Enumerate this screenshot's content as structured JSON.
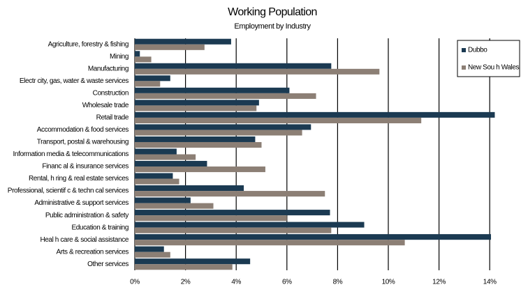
{
  "chart_data": {
    "type": "barh",
    "title": "Working Population",
    "subtitle": "Employment by Industry",
    "categories": [
      "Agriculture, forestry & fishing",
      "Mining",
      "Manufacturing",
      "Electr city, gas, water & waste services",
      "Construction",
      "Wholesale trade",
      "Retail trade",
      "Accommodation & food services",
      "Transport, postal & warehousing",
      "Information media & telecommunications",
      "Financ al & insurance services",
      "Rental, h ring & real estate services",
      "Professional, scientif c & techn cal services",
      "Administrative & support services",
      "Public administration & safety",
      "Education & training",
      "Heal h care & social assistance",
      "Arts & recreation services",
      "Other services"
    ],
    "series": [
      {
        "name": "Dubbo",
        "color": "#1b3a52",
        "values": [
          3.8,
          0.2,
          7.75,
          1.4,
          6.1,
          4.9,
          14.2,
          6.95,
          4.75,
          1.65,
          2.85,
          1.5,
          4.3,
          2.2,
          7.7,
          9.05,
          14.05,
          1.15,
          4.55
        ]
      },
      {
        "name": "New Sou h Wales",
        "color": "#8c7f75",
        "values": [
          2.75,
          0.65,
          9.65,
          1.0,
          7.15,
          4.8,
          11.3,
          6.6,
          5.0,
          2.4,
          5.15,
          1.75,
          7.5,
          3.1,
          6.0,
          7.75,
          10.65,
          1.4,
          3.85
        ]
      }
    ],
    "xlim": [
      0,
      15
    ],
    "xticks": [
      {
        "value": 0,
        "label": "0%"
      },
      {
        "value": 2,
        "label": "2%"
      },
      {
        "value": 4,
        "label": "4%"
      },
      {
        "value": 6,
        "label": "6%"
      },
      {
        "value": 8,
        "label": "8%"
      },
      {
        "value": 10,
        "label": "10%"
      },
      {
        "value": 12,
        "label": "12%"
      },
      {
        "value": 14,
        "label": "14%"
      }
    ],
    "grid": true,
    "legend": "top-right"
  }
}
